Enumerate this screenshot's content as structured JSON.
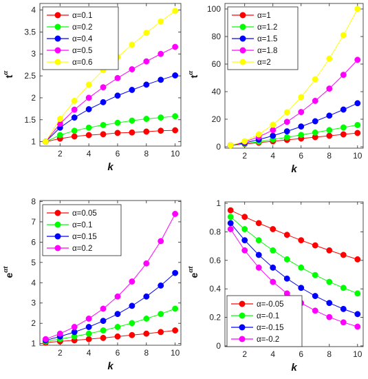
{
  "chart_data": [
    {
      "type": "line",
      "xlabel": "k",
      "ylabel_base": "t",
      "ylabel_sup": "α",
      "xlim": [
        0.6,
        10.4
      ],
      "ylim": [
        0.9,
        4.15
      ],
      "xticks": [
        2,
        4,
        6,
        8,
        10
      ],
      "yticks": [
        1,
        1.5,
        2,
        2.5,
        3,
        3.5,
        4
      ],
      "ytick_labels": [
        "1",
        "1.5",
        "2",
        "2.5",
        "3",
        "3.5",
        "4"
      ],
      "legend_position": "top-left",
      "x": [
        1,
        2,
        3,
        4,
        5,
        6,
        7,
        8,
        9,
        10
      ],
      "series": [
        {
          "name": "α=0.1",
          "color": "#ff0000",
          "values": [
            1,
            1.07,
            1.12,
            1.15,
            1.17,
            1.2,
            1.21,
            1.23,
            1.25,
            1.26
          ]
        },
        {
          "name": "α=0.2",
          "color": "#00ff00",
          "values": [
            1,
            1.15,
            1.25,
            1.32,
            1.38,
            1.43,
            1.48,
            1.52,
            1.55,
            1.58
          ]
        },
        {
          "name": "α=0.4",
          "color": "#0000ff",
          "values": [
            1,
            1.32,
            1.55,
            1.74,
            1.9,
            2.05,
            2.18,
            2.3,
            2.41,
            2.51
          ]
        },
        {
          "name": "α=0.5",
          "color": "#ff00ff",
          "values": [
            1,
            1.41,
            1.73,
            2.0,
            2.24,
            2.45,
            2.65,
            2.83,
            3.0,
            3.16
          ]
        },
        {
          "name": "α=0.6",
          "color": "#ffff00",
          "values": [
            1,
            1.52,
            1.93,
            2.3,
            2.63,
            2.93,
            3.21,
            3.48,
            3.74,
            3.98
          ]
        }
      ]
    },
    {
      "type": "line",
      "xlabel": "k",
      "ylabel_base": "t",
      "ylabel_sup": "α",
      "xlim": [
        0.6,
        10.4
      ],
      "ylim": [
        -1,
        104
      ],
      "xticks": [
        2,
        4,
        6,
        8,
        10
      ],
      "yticks": [
        0,
        20,
        40,
        60,
        80,
        100
      ],
      "ytick_labels": [
        "0",
        "20",
        "40",
        "60",
        "80",
        "100"
      ],
      "legend_position": "top-left",
      "x": [
        1,
        2,
        3,
        4,
        5,
        6,
        7,
        8,
        9,
        10
      ],
      "series": [
        {
          "name": "α=1",
          "color": "#ff0000",
          "values": [
            1,
            2,
            3,
            4,
            5,
            6,
            7,
            8,
            9,
            10
          ]
        },
        {
          "name": "α=1.2",
          "color": "#00ff00",
          "values": [
            1,
            2.3,
            3.7,
            5.3,
            6.9,
            8.6,
            10.3,
            12.1,
            14.0,
            15.8
          ]
        },
        {
          "name": "α=1.5",
          "color": "#0000ff",
          "values": [
            1,
            2.8,
            5.2,
            8.0,
            11.2,
            14.7,
            18.5,
            22.6,
            27.0,
            31.6
          ]
        },
        {
          "name": "α=1.8",
          "color": "#ff00ff",
          "values": [
            1,
            3.5,
            7.2,
            12.1,
            18.1,
            25.2,
            33.3,
            42.2,
            52.2,
            63.1
          ]
        },
        {
          "name": "α=2",
          "color": "#ffff00",
          "values": [
            1,
            4,
            9,
            16,
            25,
            36,
            49,
            64,
            81,
            100
          ]
        }
      ]
    },
    {
      "type": "line",
      "xlabel": "k",
      "ylabel_base": "e",
      "ylabel_sup": "αt",
      "xlim": [
        0.6,
        10.4
      ],
      "ylim": [
        0.92,
        8.05
      ],
      "xticks": [
        2,
        4,
        6,
        8,
        10
      ],
      "yticks": [
        1,
        2,
        3,
        4,
        5,
        6,
        7,
        8
      ],
      "ytick_labels": [
        "1",
        "2",
        "3",
        "4",
        "5",
        "6",
        "7",
        "8"
      ],
      "legend_position": "top-left",
      "x": [
        1,
        2,
        3,
        4,
        5,
        6,
        7,
        8,
        9,
        10
      ],
      "series": [
        {
          "name": "α=0.05",
          "color": "#ff0000",
          "values": [
            1.05,
            1.11,
            1.16,
            1.22,
            1.28,
            1.35,
            1.42,
            1.49,
            1.57,
            1.65
          ]
        },
        {
          "name": "α=0.1",
          "color": "#00ff00",
          "values": [
            1.11,
            1.22,
            1.35,
            1.49,
            1.65,
            1.82,
            2.01,
            2.23,
            2.46,
            2.72
          ]
        },
        {
          "name": "α=0.15",
          "color": "#0000ff",
          "values": [
            1.16,
            1.35,
            1.57,
            1.82,
            2.12,
            2.46,
            2.86,
            3.32,
            3.86,
            4.48
          ]
        },
        {
          "name": "α=0.2",
          "color": "#ff00ff",
          "values": [
            1.22,
            1.49,
            1.82,
            2.23,
            2.72,
            3.32,
            4.06,
            4.95,
            6.05,
            7.39
          ]
        }
      ]
    },
    {
      "type": "line",
      "xlabel": "k",
      "ylabel_base": "e",
      "ylabel_sup": "αt",
      "xlim": [
        0.6,
        10.4
      ],
      "ylim": [
        -0.005,
        1.01
      ],
      "xticks": [
        2,
        4,
        6,
        8,
        10
      ],
      "yticks": [
        0,
        0.2,
        0.4,
        0.6,
        0.8,
        1
      ],
      "ytick_labels": [
        "0",
        "0.2",
        "0.4",
        "0.6",
        "0.8",
        "1"
      ],
      "legend_position": "bottom-left",
      "x": [
        1,
        2,
        3,
        4,
        5,
        6,
        7,
        8,
        9,
        10
      ],
      "series": [
        {
          "name": "α=-0.05",
          "color": "#ff0000",
          "values": [
            0.951,
            0.905,
            0.861,
            0.819,
            0.779,
            0.741,
            0.705,
            0.67,
            0.638,
            0.607
          ]
        },
        {
          "name": "α=-0.1",
          "color": "#00ff00",
          "values": [
            0.905,
            0.819,
            0.741,
            0.67,
            0.607,
            0.549,
            0.497,
            0.449,
            0.407,
            0.368
          ]
        },
        {
          "name": "α=-0.15",
          "color": "#0000ff",
          "values": [
            0.861,
            0.741,
            0.638,
            0.549,
            0.472,
            0.407,
            0.35,
            0.301,
            0.259,
            0.223
          ]
        },
        {
          "name": "α=-0.2",
          "color": "#ff00ff",
          "values": [
            0.819,
            0.67,
            0.549,
            0.449,
            0.368,
            0.301,
            0.247,
            0.202,
            0.165,
            0.135
          ]
        }
      ]
    }
  ]
}
